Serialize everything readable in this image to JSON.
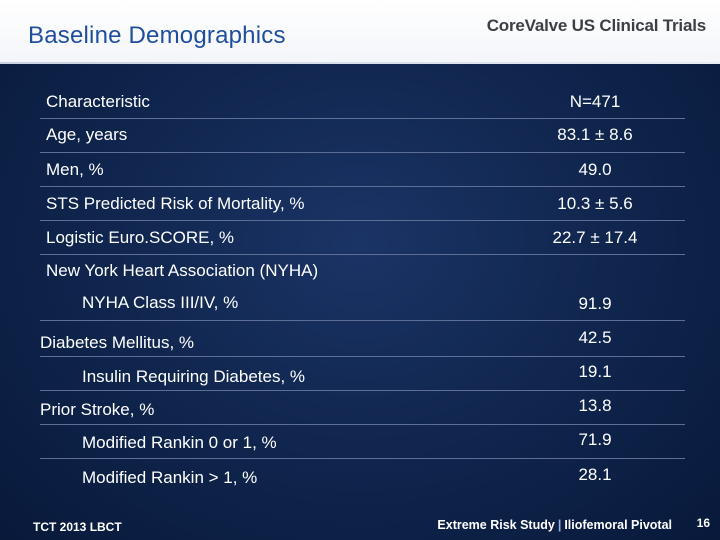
{
  "header": {
    "title": "Baseline Demographics",
    "brand": "CoreValve US Clinical Trials"
  },
  "table": {
    "header": {
      "label": "Characteristic",
      "value": "N=471"
    },
    "rows": [
      {
        "label": "Age, years",
        "value": "83.1 ± 8.6"
      },
      {
        "label": "Men, %",
        "value": "49.0"
      },
      {
        "label": "STS Predicted Risk of Mortality, %",
        "value": "10.3 ± 5.6"
      },
      {
        "label": "Logistic Euro.SCORE, %",
        "value": "22.7 ± 17.4"
      },
      {
        "label": "New York Heart Association (NYHA)",
        "value": ""
      },
      {
        "label": "NYHA Class III/IV, %",
        "value": "91.9"
      },
      {
        "label": "Diabetes Mellitus, %",
        "value": "42.5"
      },
      {
        "label": "Insulin Requiring Diabetes, %",
        "value": "19.1"
      },
      {
        "label": "Prior Stroke, %",
        "value": "13.8"
      },
      {
        "label": "Modified Rankin 0 or 1, %",
        "value": "71.9"
      },
      {
        "label": "Modified Rankin > 1, %",
        "value": "28.1"
      }
    ]
  },
  "footer": {
    "left": "TCT 2013 LBCT",
    "study": "Extreme Risk Study",
    "separator": "|",
    "arm": "Iliofemoral Pivotal",
    "page_number": "16"
  }
}
